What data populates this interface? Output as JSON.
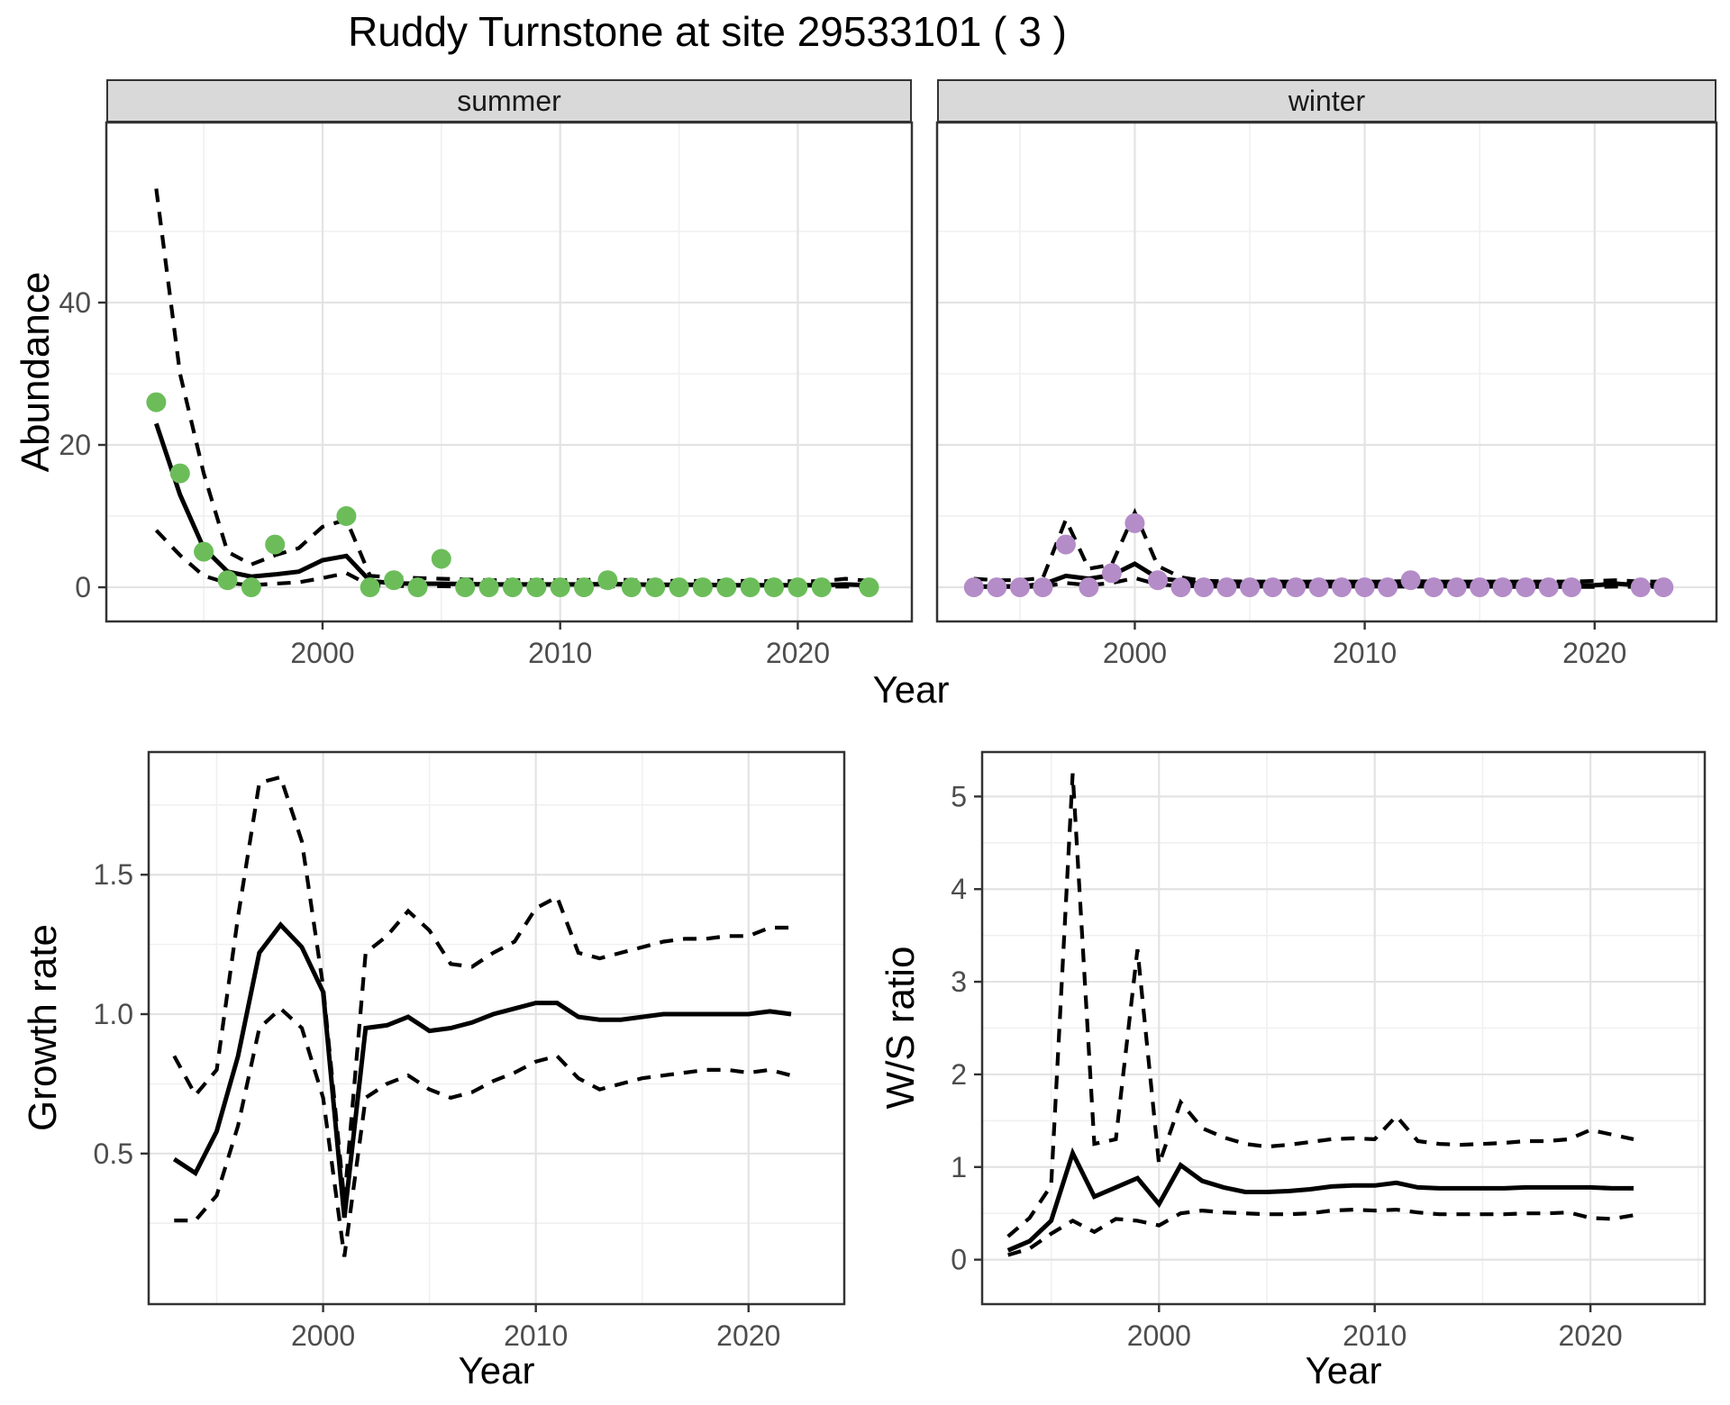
{
  "title": "Ruddy Turnstone at site 29533101 ( 3 )",
  "facets": {
    "summer_label": "summer",
    "winter_label": "winter"
  },
  "axis_titles": {
    "abundance": "Abundance",
    "year_top": "Year",
    "growth": "Growth rate",
    "year_growth": "Year",
    "ws": "W/S ratio",
    "year_ws": "Year"
  },
  "colors": {
    "summer_point": "#6cbd5a",
    "winter_point": "#b48cc8",
    "line": "#000000",
    "strip_bg": "#d9d9d9",
    "panel_border": "#333333",
    "grid_major": "#e3e3e3",
    "grid_minor": "#f0f0f0",
    "tick_text": "#4d4d4d"
  },
  "chart_data": [
    {
      "id": "abundance-summer",
      "type": "line",
      "facet_label": "summer",
      "xlabel": "Year",
      "ylabel": "Abundance",
      "x": [
        1993,
        1994,
        1995,
        1996,
        1997,
        1998,
        1999,
        2000,
        2001,
        2002,
        2003,
        2004,
        2005,
        2006,
        2007,
        2008,
        2009,
        2010,
        2011,
        2012,
        2013,
        2014,
        2015,
        2016,
        2017,
        2018,
        2019,
        2020,
        2021,
        2022,
        2023
      ],
      "points": [
        26,
        16,
        5,
        1,
        0,
        6,
        null,
        null,
        10,
        0,
        1,
        0,
        4,
        0,
        0,
        0,
        0,
        0,
        0,
        1,
        0,
        0,
        0,
        0,
        0,
        0,
        0,
        0,
        0,
        null,
        0
      ],
      "series": [
        {
          "name": "mean",
          "style": "solid",
          "values": [
            23,
            13,
            5.5,
            2.2,
            1.5,
            1.8,
            2.2,
            3.8,
            4.4,
            0.9,
            0.55,
            0.5,
            0.5,
            0.45,
            0.4,
            0.4,
            0.4,
            0.4,
            0.4,
            0.45,
            0.4,
            0.35,
            0.35,
            0.35,
            0.3,
            0.3,
            0.3,
            0.3,
            0.3,
            0.4,
            0.3
          ]
        },
        {
          "name": "upper_ci",
          "style": "dashed",
          "values": [
            56,
            30,
            16,
            5,
            3.2,
            4.5,
            5.5,
            8.5,
            9.5,
            1.6,
            1.4,
            1.3,
            1.2,
            1.1,
            1.0,
            1.0,
            1.0,
            1.0,
            1.0,
            1.2,
            1.0,
            0.95,
            0.9,
            0.9,
            0.9,
            0.9,
            0.85,
            0.85,
            0.85,
            1.2,
            0.9
          ]
        },
        {
          "name": "lower_ci",
          "style": "dashed",
          "values": [
            8,
            4.5,
            1.6,
            0.6,
            0.3,
            0.5,
            0.7,
            1.3,
            2.0,
            0.25,
            0.2,
            0.15,
            0.15,
            0.1,
            0.1,
            0.1,
            0.1,
            0.1,
            0.1,
            0.15,
            0.1,
            0.1,
            0.1,
            0.1,
            0.1,
            0.1,
            0.1,
            0.1,
            0.1,
            0.1,
            0.1
          ]
        }
      ],
      "xlim": [
        1990.9,
        2024.8
      ],
      "ylim": [
        -4.8,
        65.3
      ],
      "xticks": [
        2000,
        2010,
        2020
      ],
      "xticks_minor": [
        1995,
        2005,
        2015
      ],
      "yticks": [
        0,
        20,
        40
      ],
      "ytick_labels": [
        "0",
        "20",
        "40"
      ],
      "yticks_minor": [
        10,
        30,
        50
      ],
      "point_color": "#6cbd5a"
    },
    {
      "id": "abundance-winter",
      "type": "line",
      "facet_label": "winter",
      "xlabel": "Year",
      "ylabel": "Abundance",
      "x": [
        1993,
        1994,
        1995,
        1996,
        1997,
        1998,
        1999,
        2000,
        2001,
        2002,
        2003,
        2004,
        2005,
        2006,
        2007,
        2008,
        2009,
        2010,
        2011,
        2012,
        2013,
        2014,
        2015,
        2016,
        2017,
        2018,
        2019,
        2020,
        2021,
        2022,
        2023
      ],
      "points": [
        0,
        0,
        0,
        0,
        6,
        0,
        2,
        9,
        1,
        0,
        0,
        0,
        0,
        0,
        0,
        0,
        0,
        0,
        0,
        1,
        0,
        0,
        0,
        0,
        0,
        0,
        0,
        null,
        null,
        0,
        0
      ],
      "series": [
        {
          "name": "mean",
          "style": "solid",
          "values": [
            0.1,
            0.1,
            0.15,
            0.4,
            1.6,
            1.2,
            1.7,
            3.3,
            1.3,
            0.9,
            0.4,
            0.35,
            0.3,
            0.3,
            0.3,
            0.3,
            0.3,
            0.3,
            0.3,
            0.35,
            0.3,
            0.3,
            0.3,
            0.25,
            0.25,
            0.25,
            0.25,
            0.3,
            0.5,
            0.25,
            0.25
          ]
        },
        {
          "name": "upper_ci",
          "style": "dashed",
          "values": [
            1.2,
            1.0,
            1.0,
            1.3,
            9.5,
            2.6,
            3.2,
            10.5,
            3.0,
            1.4,
            0.9,
            0.85,
            0.8,
            0.8,
            0.8,
            0.8,
            0.8,
            0.8,
            0.8,
            0.9,
            0.8,
            0.8,
            0.8,
            0.8,
            0.8,
            0.8,
            0.8,
            0.9,
            1.0,
            0.8,
            0.8
          ]
        },
        {
          "name": "lower_ci",
          "style": "dashed",
          "values": [
            0.05,
            0.05,
            0.05,
            0.1,
            0.6,
            0.3,
            0.6,
            1.3,
            0.4,
            0.2,
            0.1,
            0.1,
            0.1,
            0.1,
            0.1,
            0.1,
            0.1,
            0.1,
            0.1,
            0.1,
            0.1,
            0.1,
            0.1,
            0.05,
            0.05,
            0.05,
            0.05,
            0.05,
            0.1,
            0.05,
            0.05
          ]
        }
      ],
      "xlim": [
        1991.4,
        2025.3
      ],
      "ylim": [
        -4.8,
        65.3
      ],
      "xticks": [
        2000,
        2010,
        2020
      ],
      "xticks_minor": [
        1995,
        2005,
        2015
      ],
      "yticks": [
        0,
        20,
        40
      ],
      "ytick_labels": [
        "0",
        "20",
        "40"
      ],
      "yticks_minor": [
        10,
        30,
        50
      ],
      "point_color": "#b48cc8"
    },
    {
      "id": "growth-rate",
      "type": "line",
      "xlabel": "Year",
      "ylabel": "Growth rate",
      "x": [
        1993,
        1994,
        1995,
        1996,
        1997,
        1998,
        1999,
        2000,
        2001,
        2002,
        2003,
        2004,
        2005,
        2006,
        2007,
        2008,
        2009,
        2010,
        2011,
        2012,
        2013,
        2014,
        2015,
        2016,
        2017,
        2018,
        2019,
        2020,
        2021,
        2022
      ],
      "series": [
        {
          "name": "mean",
          "style": "solid",
          "values": [
            0.48,
            0.43,
            0.58,
            0.85,
            1.22,
            1.32,
            1.24,
            1.08,
            0.27,
            0.95,
            0.96,
            0.99,
            0.94,
            0.95,
            0.97,
            1.0,
            1.02,
            1.04,
            1.04,
            0.99,
            0.98,
            0.98,
            0.99,
            1.0,
            1.0,
            1.0,
            1.0,
            1.0,
            1.01,
            1.0
          ]
        },
        {
          "name": "upper_ci",
          "style": "dashed",
          "values": [
            0.85,
            0.71,
            0.8,
            1.35,
            1.83,
            1.85,
            1.62,
            1.1,
            0.33,
            1.22,
            1.28,
            1.37,
            1.3,
            1.18,
            1.17,
            1.22,
            1.26,
            1.38,
            1.42,
            1.22,
            1.2,
            1.22,
            1.24,
            1.26,
            1.27,
            1.27,
            1.28,
            1.28,
            1.31,
            1.31
          ]
        },
        {
          "name": "lower_ci",
          "style": "dashed",
          "values": [
            0.26,
            0.26,
            0.35,
            0.6,
            0.95,
            1.02,
            0.95,
            0.7,
            0.13,
            0.7,
            0.75,
            0.78,
            0.73,
            0.7,
            0.72,
            0.76,
            0.79,
            0.83,
            0.85,
            0.77,
            0.73,
            0.75,
            0.77,
            0.78,
            0.79,
            0.8,
            0.8,
            0.79,
            0.8,
            0.78
          ]
        }
      ],
      "xlim": [
        1991.8,
        2024.5
      ],
      "ylim": [
        -0.04,
        1.94
      ],
      "xticks": [
        2000,
        2010,
        2020
      ],
      "xticks_minor": [
        1995,
        2005,
        2015
      ],
      "yticks": [
        0.5,
        1.0,
        1.5
      ],
      "ytick_labels": [
        "0.5",
        "1.0",
        "1.5"
      ],
      "yticks_minor": [
        0.25,
        0.75,
        1.25,
        1.75
      ]
    },
    {
      "id": "ws-ratio",
      "type": "line",
      "xlabel": "Year",
      "ylabel": "W/S ratio",
      "x": [
        1993,
        1994,
        1995,
        1996,
        1997,
        1998,
        1999,
        2000,
        2001,
        2002,
        2003,
        2004,
        2005,
        2006,
        2007,
        2008,
        2009,
        2010,
        2011,
        2012,
        2013,
        2014,
        2015,
        2016,
        2017,
        2018,
        2019,
        2020,
        2021,
        2022
      ],
      "series": [
        {
          "name": "mean",
          "style": "solid",
          "values": [
            0.1,
            0.2,
            0.42,
            1.15,
            0.68,
            0.78,
            0.88,
            0.6,
            1.02,
            0.85,
            0.78,
            0.73,
            0.73,
            0.74,
            0.76,
            0.79,
            0.8,
            0.8,
            0.83,
            0.78,
            0.77,
            0.77,
            0.77,
            0.77,
            0.78,
            0.78,
            0.78,
            0.78,
            0.77,
            0.77
          ]
        },
        {
          "name": "upper_ci",
          "style": "dashed",
          "values": [
            0.25,
            0.45,
            0.8,
            5.25,
            1.25,
            1.3,
            3.35,
            1.03,
            1.7,
            1.42,
            1.32,
            1.25,
            1.22,
            1.24,
            1.27,
            1.3,
            1.31,
            1.3,
            1.55,
            1.28,
            1.25,
            1.24,
            1.25,
            1.26,
            1.28,
            1.28,
            1.3,
            1.4,
            1.35,
            1.3
          ]
        },
        {
          "name": "lower_ci",
          "style": "dashed",
          "values": [
            0.05,
            0.12,
            0.28,
            0.42,
            0.3,
            0.44,
            0.42,
            0.37,
            0.5,
            0.53,
            0.51,
            0.5,
            0.49,
            0.49,
            0.5,
            0.53,
            0.54,
            0.53,
            0.54,
            0.51,
            0.49,
            0.49,
            0.49,
            0.49,
            0.5,
            0.5,
            0.51,
            0.45,
            0.44,
            0.48
          ]
        }
      ],
      "xlim": [
        1991.8,
        2025.3
      ],
      "ylim": [
        -0.48,
        5.48
      ],
      "xticks": [
        2000,
        2010,
        2020
      ],
      "xticks_minor": [
        1995,
        2005,
        2015,
        2025
      ],
      "yticks": [
        0,
        1,
        2,
        3,
        4,
        5
      ],
      "ytick_labels": [
        "0",
        "1",
        "2",
        "3",
        "4",
        "5"
      ],
      "yticks_minor": [
        0.5,
        1.5,
        2.5,
        3.5,
        4.5
      ]
    }
  ]
}
